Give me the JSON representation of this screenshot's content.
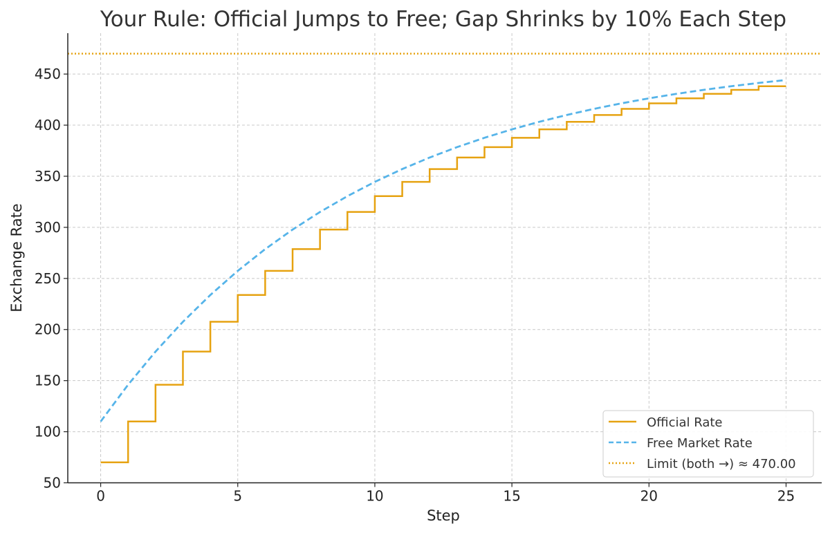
{
  "chart_data": {
    "type": "line",
    "title": "Your Rule: Official Jumps to Free; Gap Shrinks by 10% Each Step",
    "xlabel": "Step",
    "ylabel": "Exchange Rate",
    "xlim": [
      -1.2,
      26.3
    ],
    "ylim": [
      50,
      490
    ],
    "xticks": [
      0,
      5,
      10,
      15,
      20,
      25
    ],
    "yticks": [
      50,
      100,
      150,
      200,
      250,
      300,
      350,
      400,
      450
    ],
    "grid": true,
    "legend_position": "bottom-right",
    "series": [
      {
        "name": "Official Rate",
        "style": "step-post",
        "color": "#E6A210",
        "x": [
          0,
          1,
          2,
          3,
          4,
          5,
          6,
          7,
          8,
          9,
          10,
          11,
          12,
          13,
          14,
          15,
          16,
          17,
          18,
          19,
          20,
          21,
          22,
          23,
          24,
          25
        ],
        "values": [
          70.0,
          110.0,
          146.0,
          178.4,
          207.56,
          233.8,
          257.42,
          278.68,
          297.81,
          315.03,
          330.53,
          344.48,
          357.03,
          368.33,
          378.49,
          387.64,
          395.88,
          403.29,
          409.96,
          415.97,
          421.37,
          426.24,
          430.61,
          434.55,
          438.1,
          438.1
        ]
      },
      {
        "name": "Free Market Rate",
        "style": "dashed",
        "color": "#56B4E9",
        "x": [
          0,
          1,
          2,
          3,
          4,
          5,
          6,
          7,
          8,
          9,
          10,
          11,
          12,
          13,
          14,
          15,
          16,
          17,
          18,
          19,
          20,
          21,
          22,
          23,
          24,
          25
        ],
        "values": [
          110.0,
          146.0,
          178.4,
          207.56,
          233.8,
          257.42,
          278.68,
          297.81,
          315.03,
          330.53,
          344.48,
          357.03,
          368.33,
          378.49,
          387.64,
          395.88,
          403.29,
          409.96,
          415.97,
          421.37,
          426.24,
          430.61,
          434.55,
          438.1,
          441.29,
          444.16
        ]
      },
      {
        "name": "Limit (both →) ≈ 470.00",
        "style": "dotted-horizontal",
        "color": "#E6A210",
        "values": [
          470.0
        ]
      }
    ]
  }
}
